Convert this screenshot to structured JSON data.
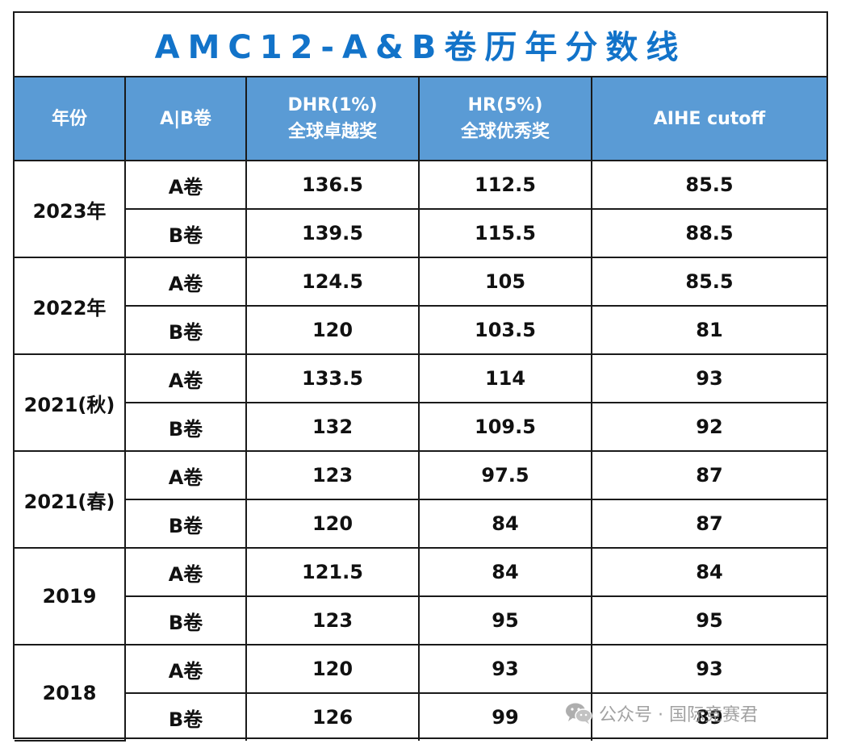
{
  "title": "AMC12-A&B卷历年分数线",
  "headers": {
    "year": "年份",
    "paper": "A|B卷",
    "dhr_line1": "DHR(1%)",
    "dhr_line2": "全球卓越奖",
    "hr_line1": "HR(5%)",
    "hr_line2": "全球优秀奖",
    "aime": "AIHE cutoff"
  },
  "rows": [
    {
      "year": "2023年",
      "a": {
        "paper": "A卷",
        "dhr": "136.5",
        "hr": "112.5",
        "aime": "85.5"
      },
      "b": {
        "paper": "B卷",
        "dhr": "139.5",
        "hr": "115.5",
        "aime": "88.5"
      }
    },
    {
      "year": "2022年",
      "a": {
        "paper": "A卷",
        "dhr": "124.5",
        "hr": "105",
        "aime": "85.5"
      },
      "b": {
        "paper": "B卷",
        "dhr": "120",
        "hr": "103.5",
        "aime": "81"
      }
    },
    {
      "year": "2021(秋)",
      "a": {
        "paper": "A卷",
        "dhr": "133.5",
        "hr": "114",
        "aime": "93"
      },
      "b": {
        "paper": "B卷",
        "dhr": "132",
        "hr": "109.5",
        "aime": "92"
      }
    },
    {
      "year": "2021(春)",
      "a": {
        "paper": "A卷",
        "dhr": "123",
        "hr": "97.5",
        "aime": "87"
      },
      "b": {
        "paper": "B卷",
        "dhr": "120",
        "hr": "84",
        "aime": "87"
      }
    },
    {
      "year": "2019",
      "a": {
        "paper": "A卷",
        "dhr": "121.5",
        "hr": "84",
        "aime": "84"
      },
      "b": {
        "paper": "B卷",
        "dhr": "123",
        "hr": "95",
        "aime": "95"
      }
    },
    {
      "year": "2018",
      "a": {
        "paper": "A卷",
        "dhr": "120",
        "hr": "93",
        "aime": "93"
      },
      "b": {
        "paper": "B卷",
        "dhr": "126",
        "hr": "99",
        "aime": "89"
      }
    }
  ],
  "watermark": {
    "text": "公众号 · 国际竞赛君",
    "icon": "wechat-icon"
  },
  "colors": {
    "title": "#1273c9",
    "header_bg": "#5a9bd5",
    "header_text": "#ffffff",
    "border": "#1a1a1a"
  }
}
